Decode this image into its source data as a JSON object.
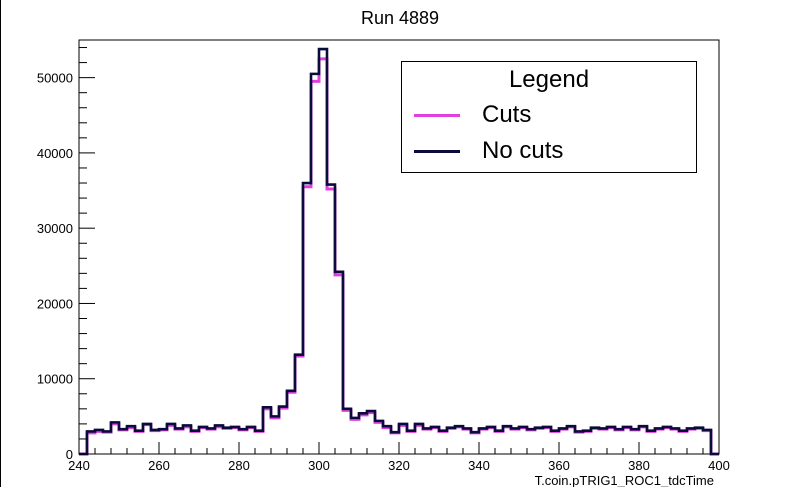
{
  "page": {
    "title": "Run 4889"
  },
  "legend": {
    "title": "Legend",
    "entries": [
      {
        "label": "Cuts",
        "color": "#e040e0"
      },
      {
        "label": "No cuts",
        "color": "#0b0b3b"
      }
    ]
  },
  "chart_data": {
    "type": "line",
    "title": "Run 4889",
    "xlabel": "T.coin.pTRIG1_ROC1_tdcTime",
    "ylabel": "",
    "xlim": [
      240,
      400
    ],
    "ylim": [
      0,
      55000
    ],
    "x_ticks": [
      240,
      260,
      280,
      300,
      320,
      340,
      360,
      380,
      400
    ],
    "y_ticks": [
      0,
      10000,
      20000,
      30000,
      40000,
      50000
    ],
    "bin_width": 2,
    "bin_start": 240,
    "legend_position": "top-right",
    "grid": false,
    "series": [
      {
        "name": "Cuts",
        "color": "#e040e0",
        "values": [
          0,
          2800,
          3000,
          2900,
          4000,
          3200,
          3500,
          3000,
          3900,
          3100,
          3200,
          3800,
          3300,
          3600,
          3000,
          3500,
          3300,
          3600,
          3400,
          3500,
          3200,
          3500,
          3000,
          6000,
          4800,
          6100,
          8200,
          13000,
          35500,
          49500,
          52500,
          35200,
          23800,
          5800,
          4600,
          5200,
          5500,
          4200,
          3500,
          2800,
          3800,
          3000,
          3800,
          3300,
          3500,
          3000,
          3400,
          3600,
          3300,
          2800,
          3300,
          3500,
          3000,
          3600,
          3300,
          3500,
          3200,
          3400,
          3500,
          3000,
          3300,
          3600,
          2900,
          3000,
          3400,
          3300,
          3500,
          3200,
          3500,
          3200,
          3600,
          3000,
          3300,
          3500,
          3300,
          3000,
          3300,
          3400,
          3100,
          0
        ]
      },
      {
        "name": "No cuts",
        "color": "#0b0b3b",
        "values": [
          0,
          3000,
          3200,
          3000,
          4200,
          3300,
          3700,
          3100,
          4000,
          3200,
          3300,
          4000,
          3400,
          3800,
          3100,
          3600,
          3400,
          3800,
          3500,
          3600,
          3300,
          3600,
          3100,
          6200,
          5000,
          6300,
          8400,
          13200,
          36000,
          50500,
          53800,
          35800,
          24200,
          6000,
          4800,
          5400,
          5700,
          4400,
          3700,
          2900,
          4000,
          3100,
          4000,
          3400,
          3600,
          3100,
          3500,
          3700,
          3400,
          2900,
          3400,
          3600,
          3100,
          3700,
          3400,
          3600,
          3300,
          3500,
          3600,
          3100,
          3400,
          3700,
          3000,
          3100,
          3500,
          3400,
          3600,
          3300,
          3600,
          3300,
          3700,
          3100,
          3400,
          3600,
          3400,
          3100,
          3400,
          3500,
          3200,
          0
        ]
      }
    ]
  }
}
